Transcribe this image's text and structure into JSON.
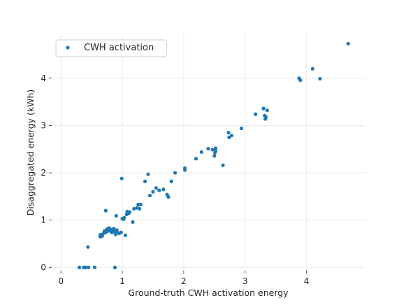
{
  "chart_data": {
    "type": "scatter",
    "title": "",
    "xlabel": "Ground-truth CWH activation energy",
    "ylabel": "Disaggregated energy (kWh)",
    "xlim": [
      -0.15,
      4.95
    ],
    "ylim": [
      -0.07,
      4.93
    ],
    "xticks": [
      0,
      1,
      2,
      3,
      4
    ],
    "yticks": [
      0,
      1,
      2,
      3,
      4
    ],
    "grid": true,
    "legend_position": "top-left",
    "series": [
      {
        "name": "CWH activation",
        "color": "#1f77b4",
        "points": [
          [
            0.3,
            0.0
          ],
          [
            0.37,
            0.0
          ],
          [
            0.4,
            0.0
          ],
          [
            0.45,
            0.0
          ],
          [
            0.55,
            0.0
          ],
          [
            0.88,
            0.0
          ],
          [
            0.44,
            0.43
          ],
          [
            0.64,
            0.65
          ],
          [
            0.64,
            0.69
          ],
          [
            0.67,
            0.66
          ],
          [
            0.68,
            0.7
          ],
          [
            0.7,
            0.73
          ],
          [
            0.71,
            0.77
          ],
          [
            0.73,
            0.74
          ],
          [
            0.74,
            0.79
          ],
          [
            0.75,
            0.8
          ],
          [
            0.76,
            0.82
          ],
          [
            0.77,
            0.77
          ],
          [
            0.79,
            0.83
          ],
          [
            0.81,
            0.8
          ],
          [
            0.82,
            0.76
          ],
          [
            0.83,
            0.74
          ],
          [
            0.85,
            0.79
          ],
          [
            0.86,
            0.82
          ],
          [
            0.87,
            0.76
          ],
          [
            0.88,
            0.79
          ],
          [
            0.89,
            0.7
          ],
          [
            0.9,
            0.73
          ],
          [
            0.91,
            0.79
          ],
          [
            0.93,
            0.73
          ],
          [
            0.95,
            0.72
          ],
          [
            0.98,
            0.74
          ],
          [
            0.73,
            1.2
          ],
          [
            0.9,
            1.09
          ],
          [
            0.99,
            1.88
          ],
          [
            1.0,
            1.03
          ],
          [
            1.02,
            1.02
          ],
          [
            1.03,
            1.05
          ],
          [
            1.05,
            0.68
          ],
          [
            1.07,
            1.12
          ],
          [
            1.08,
            1.18
          ],
          [
            1.1,
            1.14
          ],
          [
            1.12,
            1.17
          ],
          [
            1.17,
            0.96
          ],
          [
            1.19,
            1.24
          ],
          [
            1.24,
            1.26
          ],
          [
            1.26,
            1.33
          ],
          [
            1.28,
            1.24
          ],
          [
            1.3,
            1.33
          ],
          [
            1.37,
            1.82
          ],
          [
            1.42,
            1.97
          ],
          [
            1.45,
            1.52
          ],
          [
            1.5,
            1.6
          ],
          [
            1.55,
            1.68
          ],
          [
            1.6,
            1.63
          ],
          [
            1.67,
            1.65
          ],
          [
            1.73,
            1.54
          ],
          [
            1.75,
            1.49
          ],
          [
            1.8,
            1.82
          ],
          [
            1.86,
            2.0
          ],
          [
            2.02,
            2.06
          ],
          [
            2.02,
            2.1
          ],
          [
            2.2,
            2.3
          ],
          [
            2.29,
            2.44
          ],
          [
            2.4,
            2.51
          ],
          [
            2.47,
            2.49
          ],
          [
            2.5,
            2.36
          ],
          [
            2.51,
            2.43
          ],
          [
            2.52,
            2.47
          ],
          [
            2.52,
            2.52
          ],
          [
            2.64,
            2.16
          ],
          [
            2.73,
            2.85
          ],
          [
            2.74,
            2.75
          ],
          [
            2.78,
            2.79
          ],
          [
            2.94,
            2.94
          ],
          [
            3.17,
            3.24
          ],
          [
            3.3,
            3.36
          ],
          [
            3.32,
            3.21
          ],
          [
            3.33,
            3.14
          ],
          [
            3.34,
            3.18
          ],
          [
            3.36,
            3.32
          ],
          [
            3.88,
            4.0
          ],
          [
            3.9,
            3.96
          ],
          [
            4.1,
            4.2
          ],
          [
            4.22,
            3.99
          ],
          [
            4.68,
            4.73
          ]
        ]
      }
    ]
  }
}
